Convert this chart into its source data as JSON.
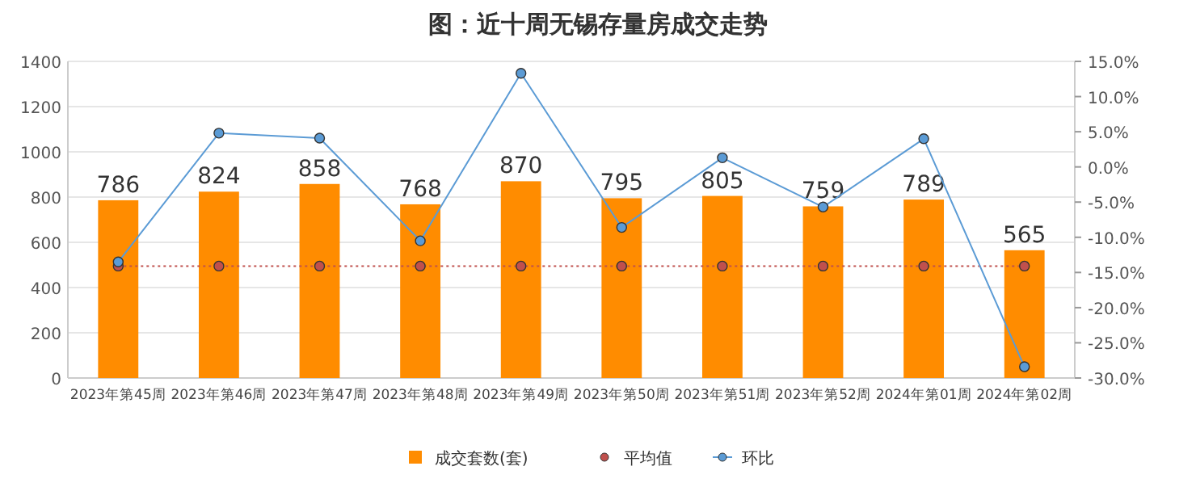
{
  "chart_data": {
    "type": "bar",
    "title": "图：近十周无锡存量房成交走势",
    "categories": [
      "2023年第45周",
      "2023年第46周",
      "2023年第47周",
      "2023年第48周",
      "2023年第49周",
      "2023年第50周",
      "2023年第51周",
      "2023年第52周",
      "2024年第01周",
      "2024年第02周"
    ],
    "series": [
      {
        "name": "成交套数(套)",
        "color": "#ff8c00",
        "values": [
          786,
          824,
          858,
          768,
          870,
          795,
          805,
          759,
          789,
          565
        ],
        "value_labels": [
          "786",
          "824",
          "858",
          "768",
          "870",
          "795",
          "805",
          "759",
          "789",
          "565"
        ]
      },
      {
        "name": "平均值",
        "type": "line",
        "color": "#c0504d",
        "line_style": "dotted",
        "marker": "circle",
        "values": [
          495,
          495,
          495,
          495,
          495,
          495,
          495,
          495,
          495,
          495
        ]
      },
      {
        "name": "环比",
        "type": "line",
        "axis": "y2",
        "color": "#5b9bd5",
        "line_style": "solid",
        "marker": "circle",
        "values": [
          -13.5,
          4.8,
          4.1,
          -10.5,
          13.3,
          -8.6,
          1.3,
          -5.7,
          4.0,
          -28.4
        ]
      }
    ],
    "ylim": [
      0,
      1400
    ],
    "yticks": [
      0,
      200,
      400,
      600,
      800,
      1000,
      1200,
      1400
    ],
    "y2lim": [
      -30,
      15
    ],
    "y2ticks": [
      {
        "value": 15,
        "label": "15.0%"
      },
      {
        "value": 10,
        "label": "10.0%"
      },
      {
        "value": 5,
        "label": "5.0%"
      },
      {
        "value": 0,
        "label": "0.0%"
      },
      {
        "value": -5,
        "label": "-5.0%"
      },
      {
        "value": -10,
        "label": "-10.0%"
      },
      {
        "value": -15,
        "label": "-15.0%"
      },
      {
        "value": -20,
        "label": "-20.0%"
      },
      {
        "value": -25,
        "label": "-25.0%"
      },
      {
        "value": -30,
        "label": "-30.0%"
      }
    ],
    "grid": "y",
    "legend": "bottom"
  }
}
